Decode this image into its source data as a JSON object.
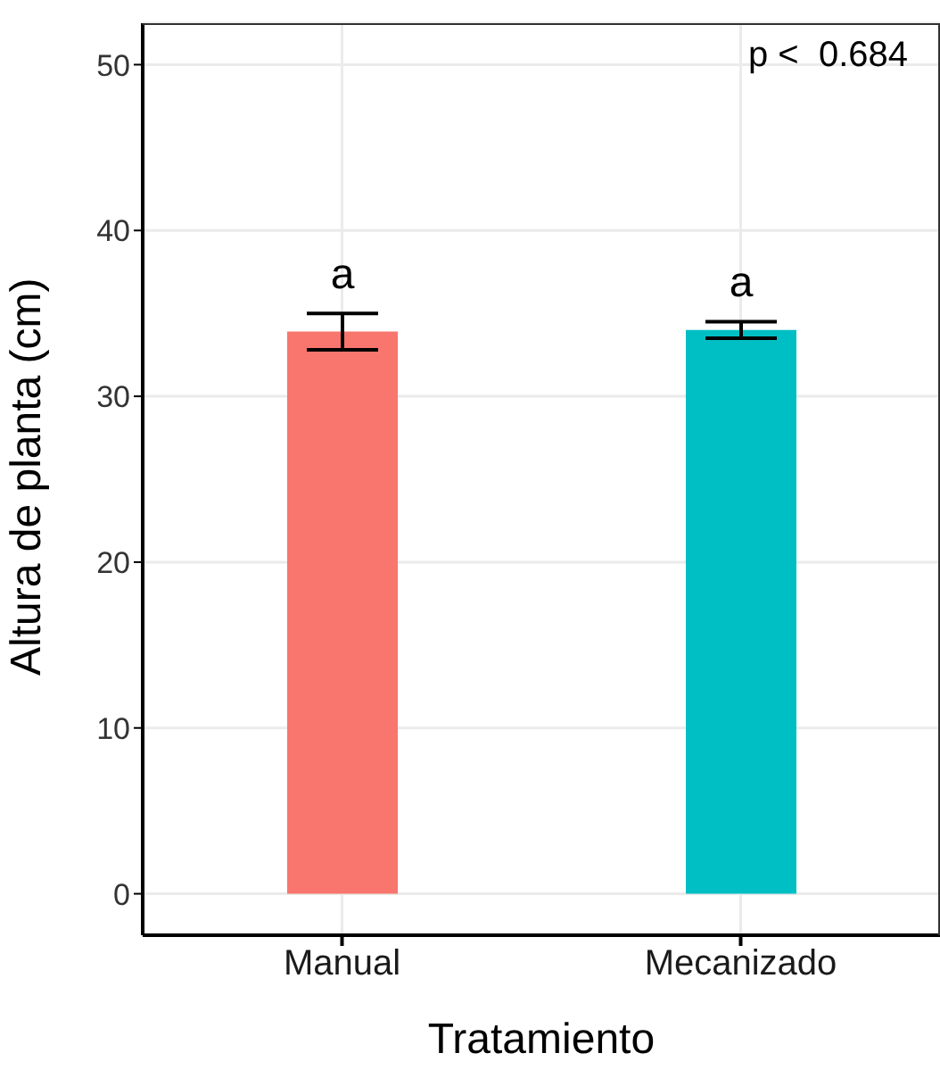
{
  "chart_data": {
    "type": "bar",
    "xlabel": "Tratamiento",
    "ylabel": "Altura de planta (cm)",
    "categories": [
      "Manual",
      "Mecanizado"
    ],
    "values": [
      33.9,
      34.0
    ],
    "colors": [
      "#f8766d",
      "#00bfc4"
    ],
    "errors": [
      1.1,
      0.5
    ],
    "ylim": [
      -2.5,
      52.5
    ],
    "yticks": [
      0,
      10,
      20,
      30,
      40,
      50
    ],
    "grid": true,
    "annotations": [
      "a",
      "a",
      "p <  0.684"
    ]
  }
}
